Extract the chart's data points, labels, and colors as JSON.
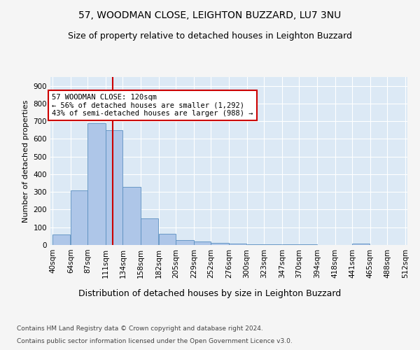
{
  "title1": "57, WOODMAN CLOSE, LEIGHTON BUZZARD, LU7 3NU",
  "title2": "Size of property relative to detached houses in Leighton Buzzard",
  "xlabel": "Distribution of detached houses by size in Leighton Buzzard",
  "ylabel": "Number of detached properties",
  "bin_edges": [
    40,
    64,
    87,
    111,
    134,
    158,
    182,
    205,
    229,
    252,
    276,
    300,
    323,
    347,
    370,
    394,
    418,
    441,
    465,
    488,
    512
  ],
  "bar_heights": [
    60,
    310,
    688,
    650,
    328,
    150,
    65,
    28,
    18,
    10,
    8,
    5,
    5,
    4,
    4,
    0,
    0,
    8,
    0,
    0
  ],
  "bar_color": "#aec6e8",
  "bar_edge_color": "#5a8fc0",
  "vline_x": 120,
  "vline_color": "#cc0000",
  "annotation_line1": "57 WOODMAN CLOSE: 120sqm",
  "annotation_line2": "← 56% of detached houses are smaller (1,292)",
  "annotation_line3": "43% of semi-detached houses are larger (988) →",
  "annotation_box_color": "#ffffff",
  "annotation_box_edge_color": "#cc0000",
  "ylim": [
    0,
    950
  ],
  "yticks": [
    0,
    100,
    200,
    300,
    400,
    500,
    600,
    700,
    800,
    900
  ],
  "background_color": "#dce9f5",
  "grid_color": "#ffffff",
  "footer_line1": "Contains HM Land Registry data © Crown copyright and database right 2024.",
  "footer_line2": "Contains public sector information licensed under the Open Government Licence v3.0.",
  "title1_fontsize": 10,
  "title2_fontsize": 9,
  "xlabel_fontsize": 9,
  "ylabel_fontsize": 8,
  "tick_fontsize": 7.5,
  "annotation_fontsize": 7.5,
  "footer_fontsize": 6.5
}
